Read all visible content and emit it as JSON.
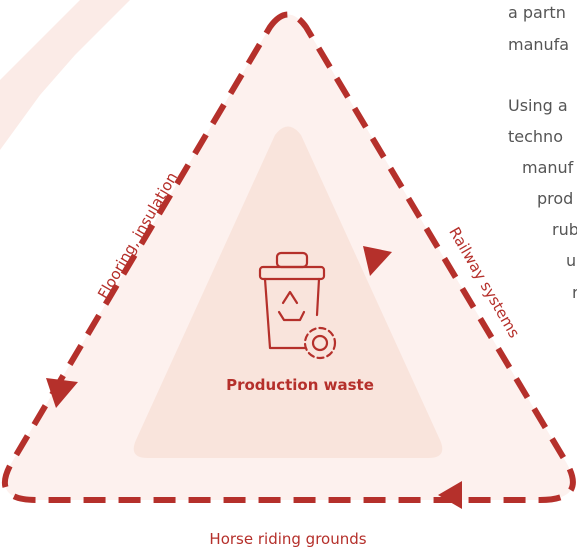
{
  "diagram": {
    "center_label": "Production waste",
    "edges": {
      "left": "Flooring, insulation",
      "right": "Railway systems",
      "bottom": "Horse riding grounds"
    },
    "side_text": [
      "a partn",
      "manufa",
      "Using a",
      "techno",
      "manuf",
      "prod",
      "rub",
      "us",
      "r"
    ]
  }
}
